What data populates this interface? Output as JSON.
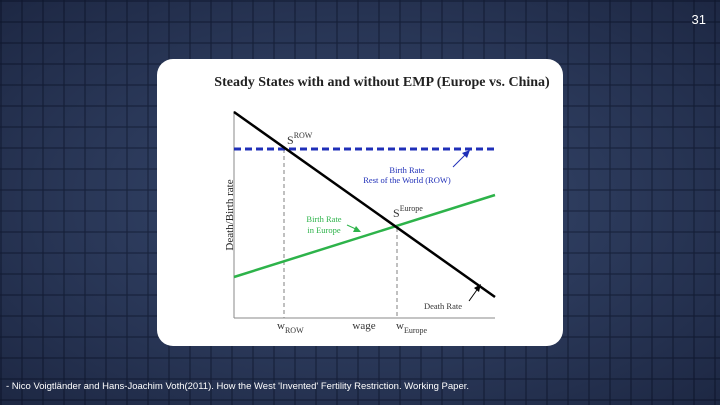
{
  "slide": {
    "page_number": "31",
    "citation": "- Nico Voigtländer and Hans-Joachim Voth(2011). How the West 'Invented' Fertility Restriction. Working Paper."
  },
  "figure": {
    "title": "Steady States with and without EMP (Europe vs. China)",
    "ylabel": "Death/Birth rate",
    "xlabel": "wage",
    "x_tick_row": {
      "base": "w",
      "sub": "ROW"
    },
    "x_tick_europe": {
      "base": "w",
      "sub": "Europe"
    },
    "steady_state_row": {
      "base": "S",
      "sup": "ROW"
    },
    "steady_state_europe": {
      "base": "S",
      "sup": "Europe"
    },
    "label_birth_rate_row": [
      "Birth Rate",
      "Rest of the World (ROW)"
    ],
    "label_birth_rate_europe": [
      "Birth Rate",
      "in Europe"
    ],
    "label_death_rate": "Death Rate",
    "colors": {
      "death_rate": "#000000",
      "birth_rate_row": "#1f2fb8",
      "birth_rate_europe": "#2db34a",
      "guides": "#808080"
    }
  }
}
